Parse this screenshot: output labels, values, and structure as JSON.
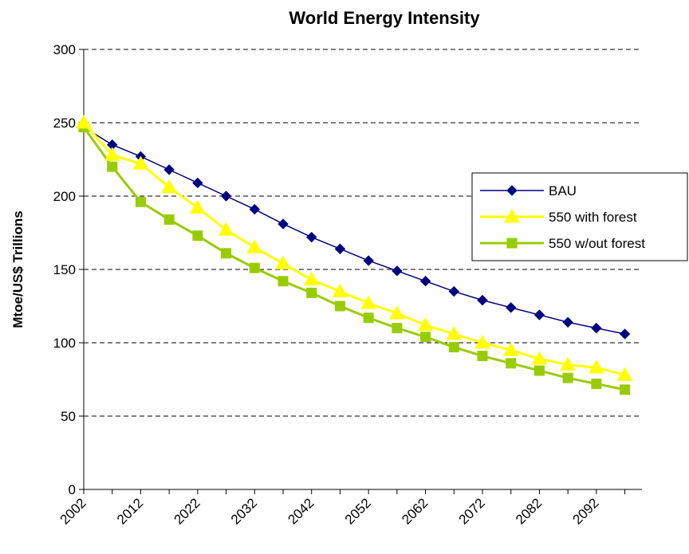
{
  "chart_data": {
    "type": "line",
    "title": "World Energy Intensity",
    "xlabel": "",
    "ylabel": "Mtoe/US$ Trillions",
    "x": [
      2002,
      2007,
      2012,
      2017,
      2022,
      2027,
      2032,
      2037,
      2042,
      2047,
      2052,
      2057,
      2062,
      2067,
      2072,
      2077,
      2082,
      2087,
      2092,
      2097
    ],
    "x_tick_labels": [
      "2002",
      "2012",
      "2022",
      "2032",
      "2042",
      "2052",
      "2062",
      "2072",
      "2082",
      "2092"
    ],
    "ylim": [
      0,
      300
    ],
    "y_ticks": [
      0,
      50,
      100,
      150,
      200,
      250,
      300
    ],
    "grid": "horizontal dashed",
    "legend_position": "right",
    "series": [
      {
        "name": "BAU",
        "color": "#000080",
        "marker": "diamond",
        "values": [
          247,
          235,
          227,
          218,
          209,
          200,
          191,
          181,
          172,
          164,
          156,
          149,
          142,
          135,
          129,
          124,
          119,
          114,
          110,
          106
        ]
      },
      {
        "name": "550 with forest",
        "color": "#FFFF00",
        "marker": "triangle",
        "values": [
          250,
          228,
          222,
          206,
          192,
          177,
          165,
          154,
          143,
          135,
          127,
          120,
          112,
          106,
          100,
          95,
          89,
          85,
          83,
          78
        ]
      },
      {
        "name": "550 w/out forest",
        "color": "#99CC00",
        "marker": "square",
        "values": [
          247,
          220,
          196,
          184,
          173,
          161,
          151,
          142,
          134,
          125,
          117,
          110,
          104,
          97,
          91,
          86,
          81,
          76,
          72,
          68
        ]
      }
    ]
  }
}
